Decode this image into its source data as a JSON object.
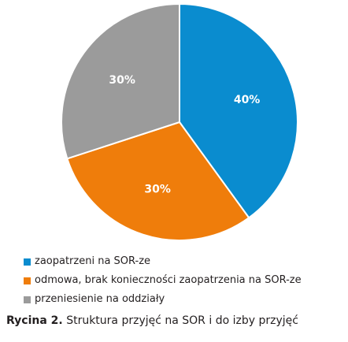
{
  "chart_data": {
    "type": "pie",
    "categories": [
      "zaopatrzeni na SOR-ze",
      "odmowa, brak konieczności zaopatrzenia na SOR-ze",
      "przeniesienie na oddziały"
    ],
    "values": [
      40,
      30,
      30
    ],
    "labels": [
      "40%",
      "30%",
      "30%"
    ],
    "colors": [
      "#0a8ccf",
      "#ef7d0b",
      "#9b9b9b"
    ],
    "legend_position": "bottom-left"
  },
  "caption": {
    "label": "Rycina 2.",
    "text": "Struktura przyjęć na SOR i do izby przyjęć"
  }
}
